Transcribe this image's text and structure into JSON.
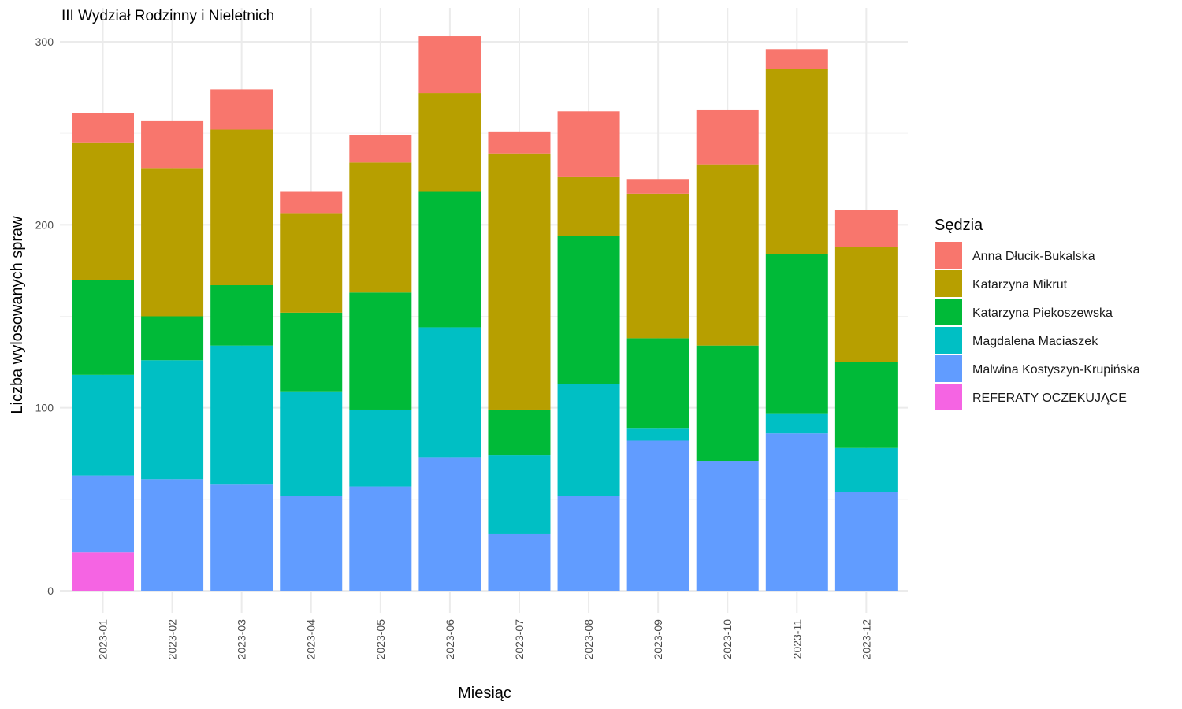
{
  "chart_data": {
    "type": "bar",
    "stacked": true,
    "title": "III Wydział Rodzinny i Nieletnich",
    "xlabel": "Miesiąc",
    "ylabel": "Liczba wylosowanych spraw",
    "ylim": [
      0,
      310
    ],
    "yticks": [
      0,
      100,
      200,
      300
    ],
    "grid": true,
    "legend_title": "Sędzia",
    "legend_position": "right",
    "categories": [
      "2023-01",
      "2023-02",
      "2023-03",
      "2023-04",
      "2023-05",
      "2023-06",
      "2023-07",
      "2023-08",
      "2023-09",
      "2023-10",
      "2023-11",
      "2023-12"
    ],
    "series": [
      {
        "name": "REFERATY OCZEKUJĄCE",
        "color": "#F564E3",
        "values": [
          21,
          0,
          0,
          0,
          0,
          0,
          0,
          0,
          0,
          0,
          0,
          0
        ]
      },
      {
        "name": "Malwina Kostyszyn-Krupińska",
        "color": "#619CFF",
        "values": [
          42,
          61,
          58,
          52,
          57,
          73,
          31,
          52,
          82,
          71,
          86,
          54
        ]
      },
      {
        "name": "Magdalena Maciaszek",
        "color": "#00BFC4",
        "values": [
          55,
          65,
          76,
          57,
          42,
          71,
          43,
          61,
          7,
          0,
          11,
          24
        ]
      },
      {
        "name": "Katarzyna Piekoszewska",
        "color": "#00BA38",
        "values": [
          52,
          24,
          33,
          43,
          64,
          74,
          25,
          81,
          49,
          63,
          87,
          47
        ]
      },
      {
        "name": "Katarzyna Mikrut",
        "color": "#B79F00",
        "values": [
          75,
          81,
          85,
          54,
          71,
          54,
          140,
          32,
          79,
          99,
          101,
          63
        ]
      },
      {
        "name": "Anna Dłucik-Bukalska",
        "color": "#F8766D",
        "values": [
          16,
          26,
          22,
          12,
          15,
          31,
          12,
          36,
          8,
          30,
          11,
          20
        ]
      }
    ],
    "legend_order": [
      "Anna Dłucik-Bukalska",
      "Katarzyna Mikrut",
      "Katarzyna Piekoszewska",
      "Magdalena Maciaszek",
      "Malwina Kostyszyn-Krupińska",
      "REFERATY OCZEKUJĄCE"
    ]
  }
}
